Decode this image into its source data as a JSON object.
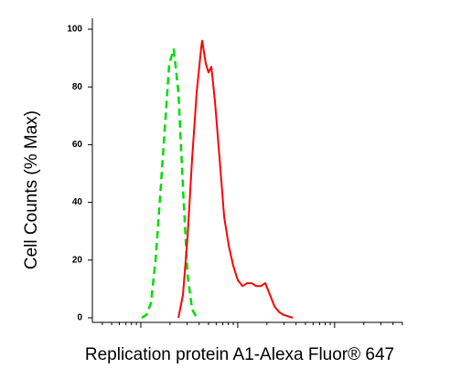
{
  "chart_data": {
    "type": "line",
    "y_label": "Cell Counts (% Max)",
    "x_label": "Replication protein A1-Alexa Fluor® 647",
    "xlim": [
      0.5,
      3.7
    ],
    "xticks": [
      1,
      2,
      3
    ],
    "xscale": "log",
    "ylim": [
      0,
      100
    ],
    "yticks": [
      0,
      20,
      40,
      60,
      80,
      100
    ],
    "series": [
      {
        "color": "#00dd00",
        "dash": true,
        "x": [
          1.01,
          1.057,
          1.104,
          1.152,
          1.199,
          1.246,
          1.293,
          1.34,
          1.388,
          1.435,
          1.482,
          1.529,
          1.576
        ],
        "values": [
          0,
          1,
          5,
          20,
          42,
          65,
          88,
          93,
          78,
          45,
          15,
          3,
          0
        ]
      },
      {
        "color": "#ff0000",
        "dash": false,
        "x": [
          1.388,
          1.435,
          1.482,
          1.529,
          1.576,
          1.624,
          1.633,
          1.671,
          1.699,
          1.728,
          1.765,
          1.813,
          1.86,
          1.907,
          1.954,
          2.001,
          2.049,
          2.096,
          2.143,
          2.19,
          2.237,
          2.285,
          2.332,
          2.379,
          2.426,
          2.474,
          2.568
        ],
        "values": [
          0,
          8,
          28,
          55,
          78,
          94,
          96,
          88,
          85,
          87,
          75,
          55,
          35,
          25,
          18,
          13,
          11,
          12,
          12,
          11,
          11,
          12,
          8,
          4,
          2,
          1,
          0
        ]
      }
    ]
  }
}
